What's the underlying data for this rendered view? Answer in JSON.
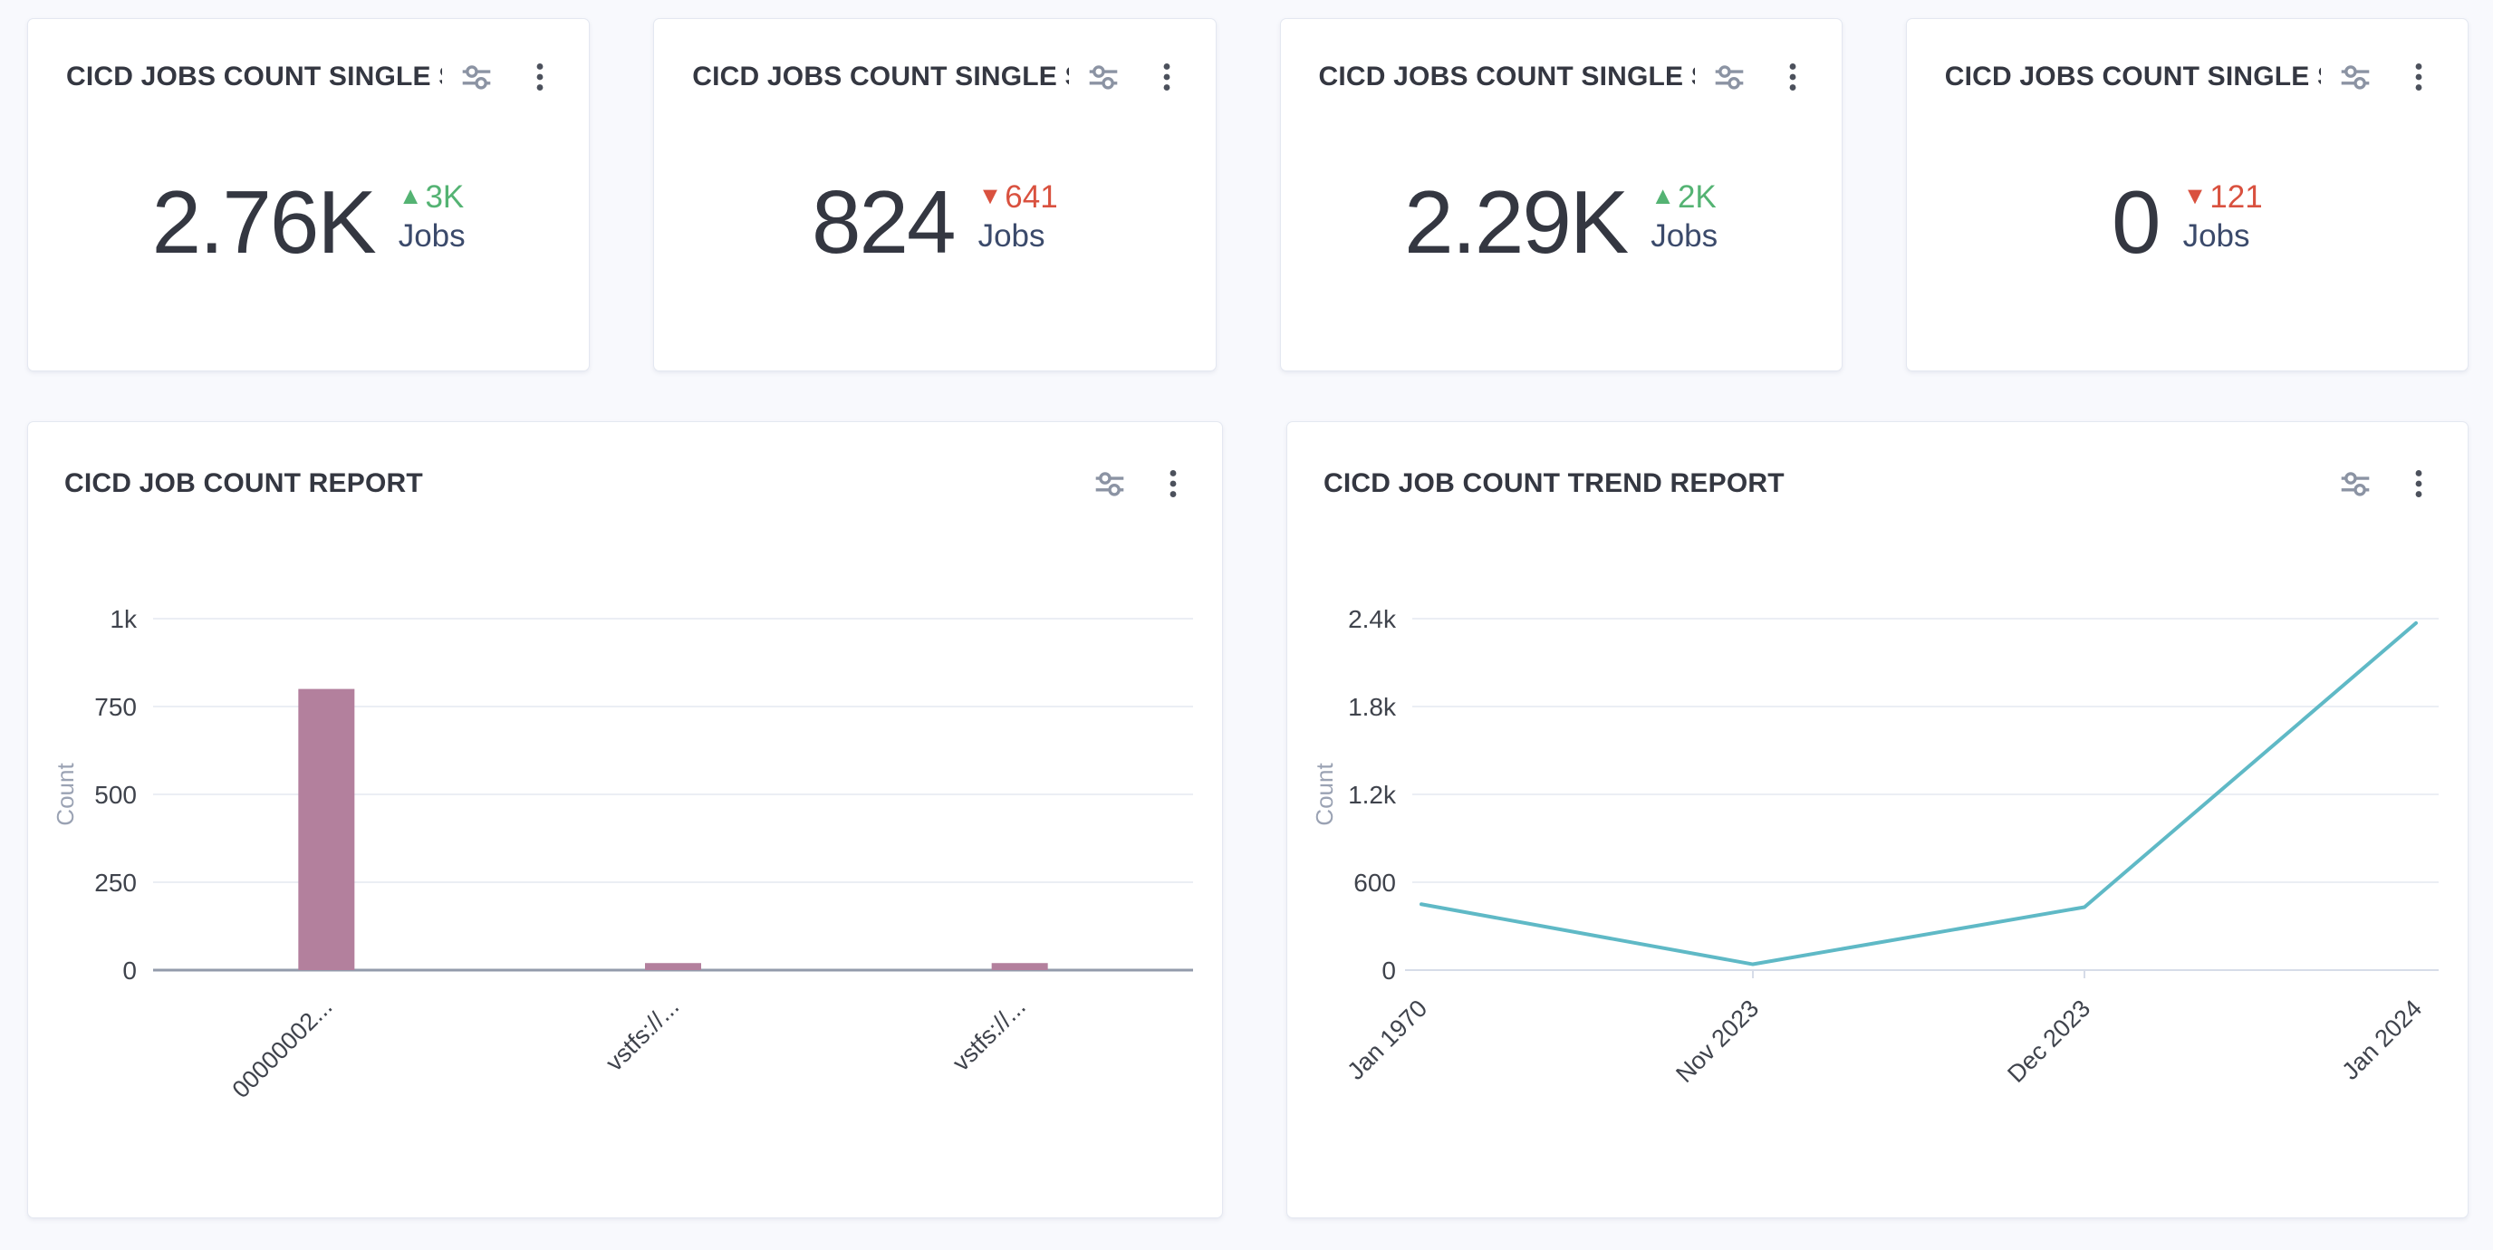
{
  "kpi_cards": [
    {
      "title": "CICD JOBS COUNT SINGLE S...",
      "value": "2.76K",
      "arrow": "▲",
      "delta": "3K",
      "direction": "up",
      "unit": "Jobs"
    },
    {
      "title": "CICD JOBS COUNT SINGLE S...",
      "value": "824",
      "arrow": "▼",
      "delta": "641",
      "direction": "down",
      "unit": "Jobs"
    },
    {
      "title": "CICD JOBS COUNT SINGLE S...",
      "value": "2.29K",
      "arrow": "▲",
      "delta": "2K",
      "direction": "up",
      "unit": "Jobs"
    },
    {
      "title": "CICD JOBS COUNT SINGLE S...",
      "value": "0",
      "arrow": "▼",
      "delta": "121",
      "direction": "down",
      "unit": "Jobs"
    }
  ],
  "chart_data": [
    {
      "type": "bar",
      "title": "CICD JOB COUNT REPORT",
      "ylabel": "Count",
      "xlabel": "",
      "categories": [
        "00000002...",
        "vstfs://...",
        "vstfs://..."
      ],
      "values": [
        800,
        20,
        20
      ],
      "ytick_labels": [
        "0",
        "250",
        "500",
        "750",
        "1k"
      ],
      "ytick_values": [
        0,
        250,
        500,
        750,
        1000
      ],
      "ylim": [
        0,
        1000
      ],
      "grid": true,
      "legend": false,
      "bar_color": "#b3809d"
    },
    {
      "type": "line",
      "title": "CICD JOB COUNT TREND REPORT",
      "ylabel": "Count",
      "xlabel": "",
      "x": [
        "Jan 1970",
        "Nov 2023",
        "Dec 2023",
        "Jan 2024"
      ],
      "values": [
        450,
        40,
        430,
        2370
      ],
      "ytick_labels": [
        "0",
        "600",
        "1.2k",
        "1.8k",
        "2.4k"
      ],
      "ytick_values": [
        0,
        600,
        1200,
        1800,
        2400
      ],
      "ylim": [
        0,
        2400
      ],
      "grid": true,
      "legend": false,
      "line_color": "#5fb9c6"
    }
  ],
  "icons": {
    "panel_filters": "sliders-icon",
    "panel_menu": "kebab-menu-icon"
  },
  "colors": {
    "page_bg": "#f8f9fd",
    "card_border": "#e4e8f1",
    "title_text": "#343741",
    "value_text": "#343741",
    "unit_text": "#3b4a6b",
    "up": "#54b373",
    "down": "#d9513f",
    "bar_fill": "#b3809d",
    "line_stroke": "#5fb9c6",
    "tick_text": "#3f434c",
    "axis_label_text": "#9aa2b3",
    "gridline": "#ebeef4",
    "axis_strong": "#939bab",
    "axis_light": "#d6dce8",
    "icon_gray": "#8b93a3",
    "kebab_gray": "#4c515c"
  }
}
